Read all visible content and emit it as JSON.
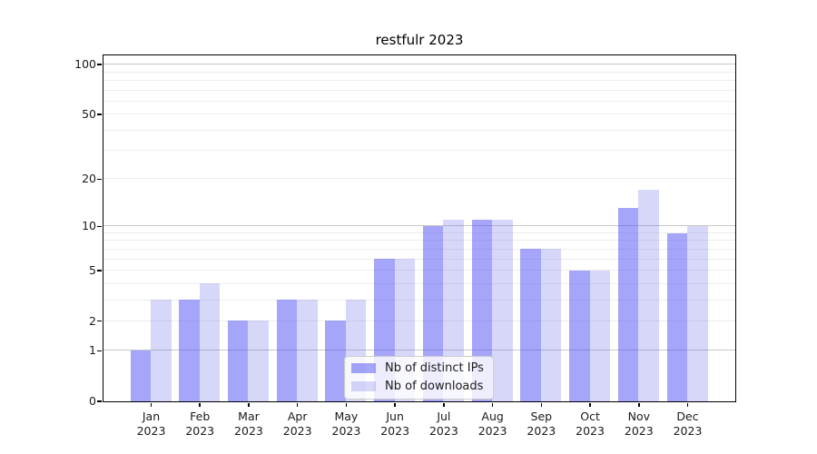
{
  "title": "restfulr 2023",
  "chart_data": {
    "type": "bar",
    "title": "restfulr 2023",
    "categories": [
      "Jan 2023",
      "Feb 2023",
      "Mar 2023",
      "Apr 2023",
      "May 2023",
      "Jun 2023",
      "Jul 2023",
      "Aug 2023",
      "Sep 2023",
      "Oct 2023",
      "Nov 2023",
      "Dec 2023"
    ],
    "series": [
      {
        "name": "Nb of distinct IPs",
        "color": "rgba(75, 75, 245, 0.5)",
        "values": [
          1,
          3,
          2,
          3,
          2,
          6,
          10,
          11,
          7,
          5,
          13,
          9
        ]
      },
      {
        "name": "Nb of downloads",
        "color": "rgba(95, 95, 235, 0.25)",
        "values": [
          3,
          4,
          2,
          3,
          3,
          6,
          11,
          11,
          7,
          5,
          17,
          10
        ]
      }
    ],
    "yscale": "log1p",
    "ylim": [
      0,
      100
    ],
    "yticks": [
      0,
      1,
      2,
      5,
      10,
      20,
      50,
      100
    ],
    "grid": {
      "major_values": [
        1,
        10,
        100
      ],
      "minor_values": [
        2,
        3,
        4,
        5,
        6,
        7,
        8,
        9,
        20,
        30,
        40,
        50,
        60,
        70,
        80,
        90
      ],
      "major_color": "#c6c6c6",
      "minor_color": "#ededed"
    },
    "legend_position": "lower center",
    "axis_color": "#000000",
    "text_color": "#1a1a1a"
  }
}
